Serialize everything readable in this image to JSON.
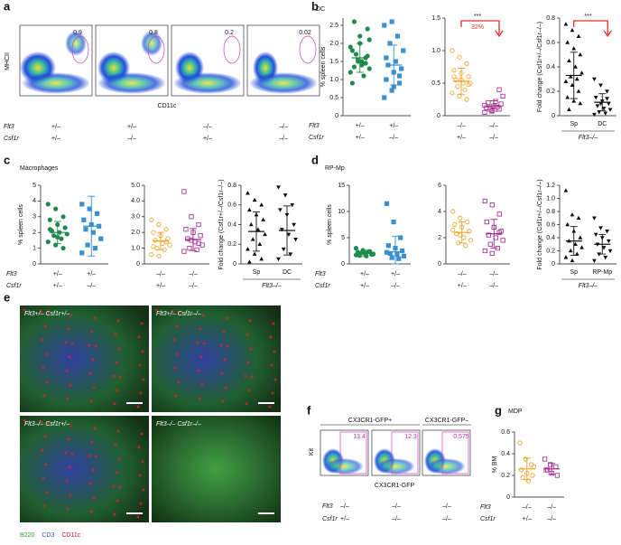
{
  "panels": {
    "a": "a",
    "b": "b",
    "c": "c",
    "d": "d",
    "e": "e",
    "f": "f",
    "g": "g"
  },
  "panel_a": {
    "gates": [
      "0.9",
      "0.8",
      "0.2",
      "0.02"
    ],
    "y_label": "MHCII",
    "x_label": "CD11c",
    "rows": [
      {
        "label": "Flt3",
        "values": [
          "+/–",
          "+/–",
          "–/–",
          "–/–"
        ]
      },
      {
        "label": "Csf1r",
        "values": [
          "+/–",
          "–/–",
          "+/–",
          "–/–"
        ]
      }
    ]
  },
  "panel_e": {
    "images": [
      "Flt3+/– Csf1r+/–",
      "Flt3+/– Csf1r–/–",
      "Flt3–/– Csf1r+/–",
      "Flt3–/– Csf1r–/–"
    ],
    "legend": [
      {
        "name": "B220",
        "color": "#2ca02c"
      },
      {
        "name": "CD3",
        "color": "#3050d0"
      },
      {
        "name": "CD11c",
        "color": "#d0102a"
      }
    ]
  },
  "panel_f": {
    "headers": [
      "CX3CR1-GFP+",
      "CX3CR1-GFP–"
    ],
    "gates": [
      "13.4",
      "12.3",
      "0.575"
    ],
    "y_label": "Kit",
    "x_label": "CX3CR1-GFP",
    "rows": [
      {
        "label": "Flt3",
        "values": [
          "–/–",
          "–/–",
          "–/–"
        ]
      },
      {
        "label": "Csf1r",
        "values": [
          "+/–",
          "–/–",
          "–/–"
        ]
      }
    ]
  },
  "chart_data": [
    {
      "type": "dot",
      "title": "DC",
      "ylabel": "% spleen cells",
      "ylim": [
        0,
        2.7
      ],
      "yticks": [
        0,
        0.5,
        {
          "value": 1,
          "label": "1.0"
        },
        1.5,
        {
          "value": 2,
          "label": "2.0"
        },
        2.5
      ],
      "rows": [
        {
          "label": "Flt3",
          "values": [
            "+/–",
            "+/–"
          ]
        },
        {
          "label": "Csf1r",
          "values": [
            "+/–",
            "–/–"
          ]
        }
      ],
      "groups": [
        {
          "color": "#1e8a4c",
          "marker": "circle",
          "values": [
            1.2,
            1.5,
            1.6,
            1.8,
            2.0,
            2.4,
            2.6,
            1.4,
            1.3,
            1.7,
            1.1,
            1.9,
            1.55,
            1.45,
            0.9,
            2.2,
            1.65,
            1.35,
            1.5,
            2.1
          ],
          "mean": 1.6,
          "sd": 0.4
        },
        {
          "color": "#3a8fd0",
          "marker": "square",
          "values": [
            0.5,
            0.7,
            0.9,
            1.0,
            1.2,
            1.3,
            1.4,
            1.5,
            1.8,
            2.0,
            2.2,
            2.5,
            2.6,
            1.1,
            1.6,
            0.8
          ],
          "mean": 1.4,
          "sd": 0.55
        }
      ]
    },
    {
      "type": "dot",
      "ylim": [
        0,
        1.5
      ],
      "yticks": [
        0,
        0.5,
        {
          "value": 1,
          "label": "1.0"
        },
        1.5
      ],
      "rows": [
        {
          "values": [
            "–/–",
            "–/–"
          ]
        },
        {
          "values": [
            "+/–",
            "–/–"
          ]
        }
      ],
      "annotations": [
        "***",
        "32%"
      ],
      "groups": [
        {
          "color": "#f0a020",
          "marker": "open-circle",
          "values": [
            1.0,
            0.9,
            0.8,
            0.7,
            0.65,
            0.6,
            0.55,
            0.5,
            0.5,
            0.45,
            0.4,
            0.35,
            0.3,
            0.25,
            0.6,
            0.55,
            0.48
          ],
          "mean": 0.53,
          "sd": 0.2
        },
        {
          "color": "#a0208a",
          "marker": "open-square",
          "values": [
            0.05,
            0.08,
            0.1,
            0.12,
            0.15,
            0.18,
            0.2,
            0.22,
            0.3,
            0.1,
            0.13,
            0.16,
            0.07,
            0.4
          ],
          "mean": 0.15,
          "sd": 0.08
        }
      ]
    },
    {
      "type": "dot",
      "ylabel": "Fold change (Csf1r+/–/Csf1r–/–)",
      "ylim": [
        0,
        0.8
      ],
      "yticks": [
        0,
        0.2,
        0.4,
        0.6,
        0.8
      ],
      "group_label": "Flt3–/–",
      "annotations": [
        "***"
      ],
      "groups": [
        {
          "category": "Sp",
          "color": "#111",
          "marker": "triangle",
          "values": [
            0.75,
            0.7,
            0.65,
            0.6,
            0.55,
            0.5,
            0.45,
            0.4,
            0.35,
            0.32,
            0.3,
            0.28,
            0.25,
            0.2,
            0.15,
            0.12,
            0.1,
            0.05
          ],
          "mean": 0.33,
          "sd": 0.19
        },
        {
          "category": "DC",
          "color": "#111",
          "marker": "triangle-down",
          "values": [
            0.3,
            0.25,
            0.2,
            0.15,
            0.12,
            0.1,
            0.08,
            0.06,
            0.05,
            0.03,
            0.02,
            0.01,
            0.1,
            0.14
          ],
          "mean": 0.11,
          "sd": 0.07
        }
      ]
    },
    {
      "type": "dot",
      "title": "Macrophages",
      "ylabel": "% spleen cells",
      "ylim": [
        0,
        5
      ],
      "yticks": [
        0,
        1,
        2,
        3,
        4,
        5
      ],
      "rows": [
        {
          "label": "Flt3",
          "values": [
            "+/–",
            "+/–"
          ]
        },
        {
          "label": "Csf1r",
          "values": [
            "+/–",
            "–/–"
          ]
        }
      ],
      "groups": [
        {
          "color": "#1e8a4c",
          "marker": "circle",
          "values": [
            3.8,
            3.5,
            3.0,
            2.8,
            2.5,
            2.3,
            2.1,
            2.0,
            1.9,
            1.8,
            1.6,
            1.4,
            1.2,
            1.0,
            2.2,
            1.7
          ],
          "mean": 2.0,
          "sd": 0.7
        },
        {
          "color": "#3a8fd0",
          "marker": "square",
          "values": [
            3.8,
            3.5,
            3.2,
            2.8,
            2.5,
            2.4,
            2.2,
            2.0,
            1.6,
            1.2,
            1.0,
            0.7
          ],
          "mean": 2.4,
          "sd": 1.9
        }
      ]
    },
    {
      "type": "dot",
      "ylim": [
        0,
        5
      ],
      "yticks": [
        0,
        {
          "value": 1,
          "label": "1.0"
        },
        {
          "value": 2,
          "label": "2.0"
        },
        {
          "value": 3,
          "label": "3.0"
        },
        {
          "value": 4,
          "label": "4.0"
        },
        {
          "value": 5,
          "label": "5.0"
        }
      ],
      "rows": [
        {
          "values": [
            "–/–",
            "–/–"
          ]
        },
        {
          "values": [
            "+/–",
            "–/–"
          ]
        }
      ],
      "groups": [
        {
          "color": "#f0a020",
          "marker": "open-circle",
          "values": [
            2.8,
            2.5,
            2.2,
            2.0,
            1.8,
            1.6,
            1.5,
            1.3,
            1.2,
            1.0,
            0.9,
            0.6,
            0.5,
            1.4,
            1.1
          ],
          "mean": 1.45,
          "sd": 0.55
        },
        {
          "color": "#a0208a",
          "marker": "open-square",
          "values": [
            4.6,
            3.0,
            2.5,
            2.2,
            2.0,
            1.8,
            1.6,
            1.4,
            1.2,
            1.0,
            0.9,
            0.8,
            1.5,
            1.3
          ],
          "mean": 1.55,
          "sd": 0.7
        }
      ]
    },
    {
      "type": "dot",
      "ylabel": "Fold change (Csf1r+/–/Csf1r–/–)",
      "ylim": [
        0,
        0.8
      ],
      "yticks": [
        0,
        0.2,
        0.4,
        0.6,
        0.8
      ],
      "group_label": "Flt3–/–",
      "groups": [
        {
          "category": "Sp",
          "color": "#111",
          "marker": "triangle",
          "values": [
            0.72,
            0.65,
            0.6,
            0.55,
            0.5,
            0.45,
            0.4,
            0.35,
            0.3,
            0.25,
            0.2,
            0.15,
            0.1,
            0.05,
            0.02
          ],
          "mean": 0.33,
          "sd": 0.2
        },
        {
          "category": "DC",
          "color": "#111",
          "marker": "triangle-down",
          "values": [
            0.78,
            0.7,
            0.6,
            0.55,
            0.5,
            0.4,
            0.35,
            0.3,
            0.25,
            0.15,
            0.1,
            0.05
          ],
          "mean": 0.34,
          "sd": 0.25
        }
      ]
    },
    {
      "type": "dot",
      "title": "RP-Mp",
      "ylabel": "% spleen cells",
      "ylim": [
        0,
        15
      ],
      "yticks": [
        0,
        5,
        10,
        15
      ],
      "rows": [
        {
          "label": "Flt3",
          "values": [
            "+/–",
            "+/–"
          ]
        },
        {
          "label": "Csf1r",
          "values": [
            "+/–",
            "–/–"
          ]
        }
      ],
      "groups": [
        {
          "color": "#1e8a4c",
          "marker": "circle",
          "values": [
            3.0,
            2.6,
            2.4,
            2.2,
            2.0,
            1.8,
            1.6,
            1.5,
            1.9,
            2.1,
            2.3,
            1.7
          ],
          "mean": 2.0,
          "sd": 0.6
        },
        {
          "color": "#3a8fd0",
          "marker": "square",
          "values": [
            11.5,
            8.0,
            5.0,
            3.5,
            3.0,
            2.5,
            2.0,
            1.8,
            1.5,
            1.2,
            1.0,
            2.2
          ],
          "mean": 2.3,
          "sd": 3.0
        }
      ]
    },
    {
      "type": "dot",
      "ylim": [
        0,
        6
      ],
      "yticks": [
        0,
        2,
        4,
        6
      ],
      "rows": [
        {
          "values": [
            "–/–",
            "–/–"
          ]
        },
        {
          "values": [
            "+/–",
            "–/–"
          ]
        }
      ],
      "groups": [
        {
          "color": "#f0a020",
          "marker": "open-circle",
          "values": [
            4.0,
            3.5,
            3.2,
            3.0,
            2.8,
            2.5,
            2.3,
            2.0,
            1.8,
            1.6,
            1.4,
            2.6,
            2.2
          ],
          "mean": 2.4,
          "sd": 0.8
        },
        {
          "color": "#a0208a",
          "marker": "open-square",
          "values": [
            4.8,
            4.5,
            3.8,
            3.2,
            2.8,
            2.5,
            2.2,
            2.0,
            1.8,
            1.5,
            1.2,
            1.0,
            0.8,
            2.4
          ],
          "mean": 2.3,
          "sd": 1.1
        }
      ]
    },
    {
      "type": "dot",
      "ylabel": "Fold change (Csf1r+/–/Csf1r–/–)",
      "ylim": [
        0,
        1.2
      ],
      "yticks": [
        0,
        0.2,
        0.4,
        0.6,
        0.8,
        {
          "value": 1,
          "label": "1.0"
        },
        1.2
      ],
      "group_label": "Flt3–/–",
      "groups": [
        {
          "category": "Sp",
          "color": "#111",
          "marker": "triangle",
          "values": [
            1.12,
            0.75,
            0.7,
            0.6,
            0.5,
            0.4,
            0.35,
            0.3,
            0.25,
            0.2,
            0.15,
            0.1,
            0.05
          ],
          "mean": 0.35,
          "sd": 0.22
        },
        {
          "category": "RP-Mp",
          "color": "#111",
          "marker": "triangle-down",
          "values": [
            0.7,
            0.55,
            0.5,
            0.45,
            0.4,
            0.35,
            0.3,
            0.25,
            0.2,
            0.15,
            0.1,
            0.05
          ],
          "mean": 0.3,
          "sd": 0.15
        }
      ]
    },
    {
      "type": "dot",
      "title": "MDP",
      "ylabel": "% BM",
      "ylim": [
        0,
        0.6
      ],
      "yticks": [
        0,
        0.2,
        0.4,
        0.6
      ],
      "rows": [
        {
          "label": "Flt3",
          "values": [
            "–/–",
            "–/–"
          ]
        },
        {
          "label": "Csf1r",
          "values": [
            "+/–",
            "–/–"
          ]
        }
      ],
      "groups": [
        {
          "color": "#f0a020",
          "marker": "open-circle",
          "values": [
            0.5,
            0.35,
            0.3,
            0.25,
            0.22,
            0.2,
            0.18,
            0.15,
            0.28
          ],
          "mean": 0.26,
          "sd": 0.1
        },
        {
          "color": "#a0208a",
          "marker": "open-square",
          "values": [
            0.35,
            0.3,
            0.28,
            0.25,
            0.22,
            0.2,
            0.25
          ],
          "mean": 0.26,
          "sd": 0.05
        }
      ]
    }
  ]
}
